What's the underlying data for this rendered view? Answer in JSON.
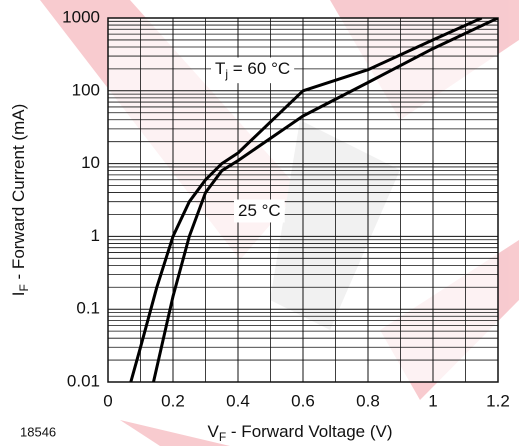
{
  "chart_data": {
    "type": "line",
    "figure_number": "18546",
    "x_label": {
      "symbol": "V",
      "subscript": "F",
      "text": " - Forward Voltage (V)"
    },
    "y_label": {
      "symbol": "I",
      "subscript": "F",
      "text": " - Forward Current (mA)"
    },
    "xlim": [
      0,
      1.2
    ],
    "xticks": [
      0,
      0.2,
      0.4,
      0.6,
      0.8,
      1,
      1.2
    ],
    "ylim": [
      0.01,
      1000
    ],
    "yticks": [
      0.01,
      0.1,
      1,
      10,
      100,
      1000
    ],
    "log_y": true,
    "grid": true,
    "series": [
      {
        "color": "#000000",
        "annotation": {
          "symbol": "T",
          "subscript": "j",
          "text": " = 60 °C"
        },
        "x": [
          0.07,
          0.1,
          0.15,
          0.2,
          0.25,
          0.3,
          0.35,
          0.4,
          0.6,
          0.8,
          1.0,
          1.15
        ],
        "values": [
          0.01,
          0.03,
          0.2,
          1,
          3,
          6,
          10,
          14,
          100,
          195,
          500,
          1000
        ]
      },
      {
        "color": "#000000",
        "annotation": {
          "text": "25 °C"
        },
        "x": [
          0.14,
          0.2,
          0.25,
          0.3,
          0.35,
          0.4,
          0.6,
          0.8,
          1.0,
          1.2
        ],
        "values": [
          0.01,
          0.15,
          1,
          4,
          8,
          11,
          45,
          130,
          380,
          1000
        ]
      }
    ]
  }
}
